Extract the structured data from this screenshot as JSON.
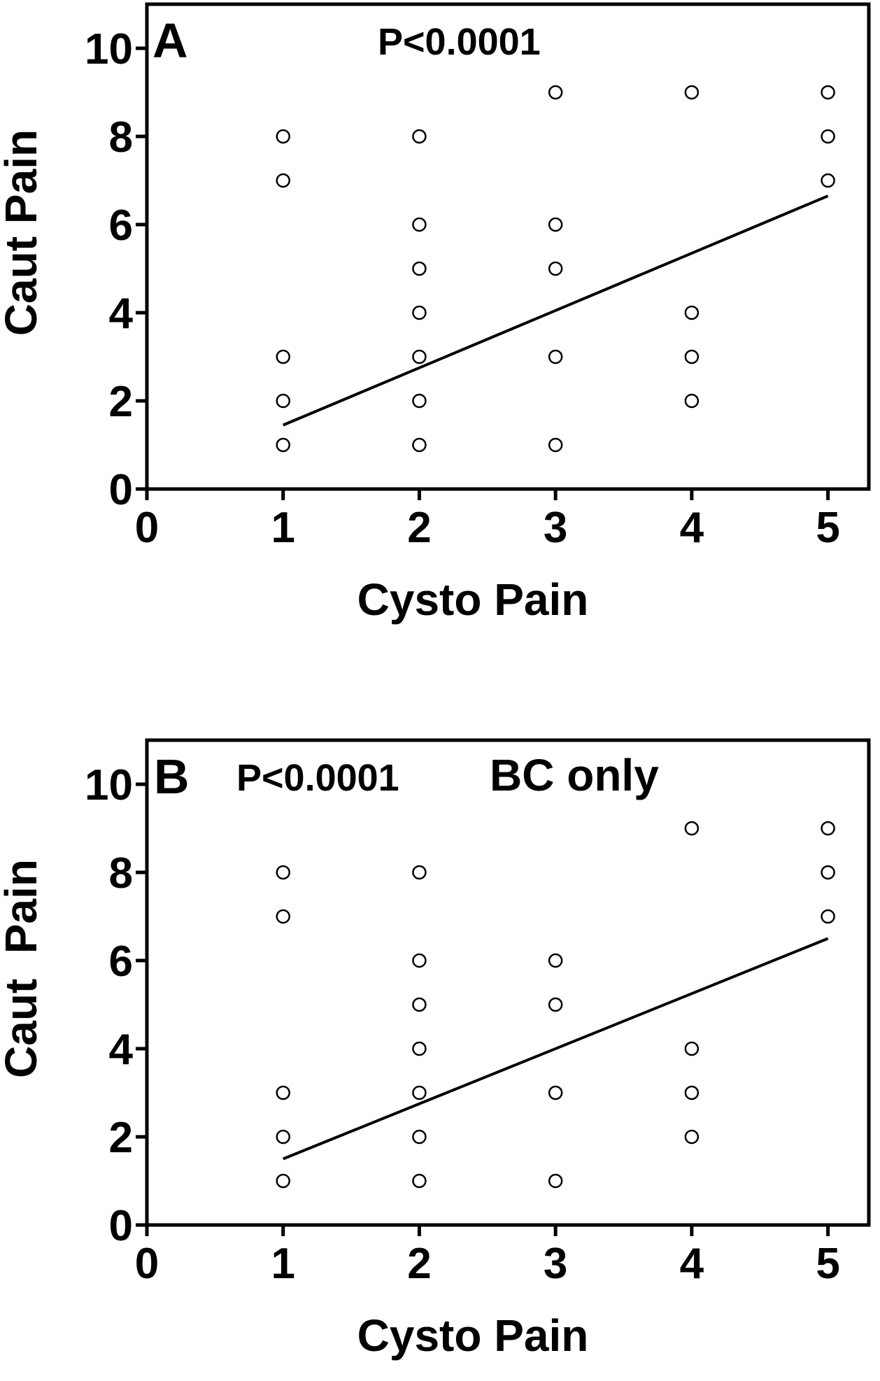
{
  "chart_data": [
    {
      "type": "scatter",
      "panel_label": "A",
      "annotations": [
        "P<0.0001"
      ],
      "xlabel": "Cysto Pain",
      "ylabel": "Caut Pain",
      "xlim": [
        0,
        5.3
      ],
      "ylim": [
        0,
        11
      ],
      "xticks": [
        0,
        1,
        2,
        3,
        4,
        5
      ],
      "yticks": [
        0,
        2,
        4,
        6,
        8,
        10
      ],
      "grid": false,
      "points": [
        [
          1,
          8
        ],
        [
          1,
          7
        ],
        [
          1,
          3
        ],
        [
          1,
          2
        ],
        [
          1,
          1
        ],
        [
          2,
          8
        ],
        [
          2,
          6
        ],
        [
          2,
          5
        ],
        [
          2,
          4
        ],
        [
          2,
          3
        ],
        [
          2,
          2
        ],
        [
          2,
          1
        ],
        [
          3,
          9
        ],
        [
          3,
          6
        ],
        [
          3,
          5
        ],
        [
          3,
          3
        ],
        [
          3,
          1
        ],
        [
          4,
          9
        ],
        [
          4,
          4
        ],
        [
          4,
          3
        ],
        [
          4,
          2
        ],
        [
          5,
          9
        ],
        [
          5,
          8
        ],
        [
          5,
          7
        ]
      ],
      "regression_line": {
        "x": [
          1,
          5
        ],
        "y": [
          1.45,
          6.65
        ]
      }
    },
    {
      "type": "scatter",
      "panel_label": "B",
      "annotations": [
        "P<0.0001",
        "BC only"
      ],
      "xlabel": "Cysto Pain",
      "ylabel": "Caut  Pain",
      "xlim": [
        0,
        5.3
      ],
      "ylim": [
        0,
        11
      ],
      "xticks": [
        0,
        1,
        2,
        3,
        4,
        5
      ],
      "yticks": [
        0,
        2,
        4,
        6,
        8,
        10
      ],
      "grid": false,
      "points": [
        [
          1,
          8
        ],
        [
          1,
          7
        ],
        [
          1,
          3
        ],
        [
          1,
          2
        ],
        [
          1,
          1
        ],
        [
          2,
          8
        ],
        [
          2,
          6
        ],
        [
          2,
          5
        ],
        [
          2,
          4
        ],
        [
          2,
          3
        ],
        [
          2,
          2
        ],
        [
          2,
          1
        ],
        [
          3,
          6
        ],
        [
          3,
          5
        ],
        [
          3,
          3
        ],
        [
          3,
          1
        ],
        [
          4,
          9
        ],
        [
          4,
          4
        ],
        [
          4,
          3
        ],
        [
          4,
          2
        ],
        [
          5,
          9
        ],
        [
          5,
          8
        ],
        [
          5,
          7
        ]
      ],
      "regression_line": {
        "x": [
          1,
          5
        ],
        "y": [
          1.5,
          6.5
        ]
      }
    }
  ]
}
